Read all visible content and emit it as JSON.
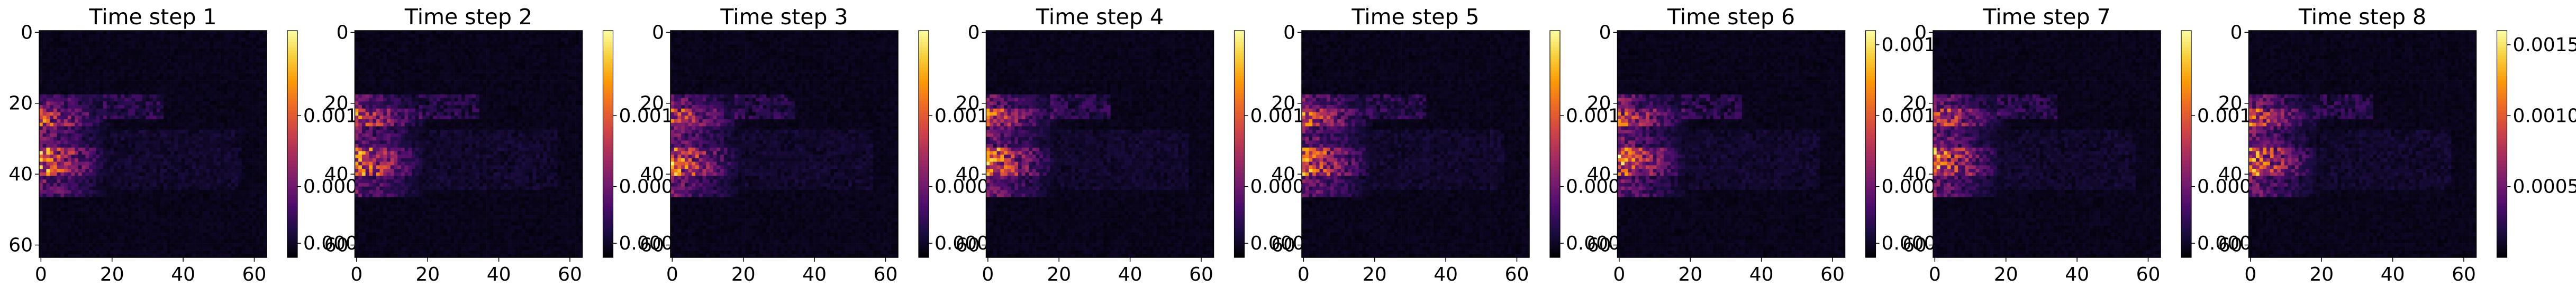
{
  "chart_data": {
    "type": "heatmap",
    "colormap": "magma",
    "panels": [
      {
        "title": "Time step 1",
        "x_ticks": [
          "0",
          "20",
          "40",
          "60"
        ],
        "y_ticks": [
          "0",
          "20",
          "40",
          "60"
        ],
        "colorbar_ticks": [
          "0.001",
          "0.000",
          "0.000"
        ],
        "colorbar_range": [
          0,
          0.0016
        ],
        "grid_size": 64
      },
      {
        "title": "Time step 2",
        "x_ticks": [
          "0",
          "20",
          "40",
          "60"
        ],
        "y_ticks": [
          "0",
          "20",
          "40",
          "60"
        ],
        "colorbar_ticks": [
          "0.001",
          "0.000",
          "0.000"
        ],
        "colorbar_range": [
          0,
          0.0016
        ],
        "grid_size": 64
      },
      {
        "title": "Time step 3",
        "x_ticks": [
          "0",
          "20",
          "40",
          "60"
        ],
        "y_ticks": [
          "0",
          "20",
          "40",
          "60"
        ],
        "colorbar_ticks": [
          "0.001",
          "0.000",
          "0.000"
        ],
        "colorbar_range": [
          0,
          0.0016
        ],
        "grid_size": 64
      },
      {
        "title": "Time step 4",
        "x_ticks": [
          "0",
          "20",
          "40",
          "60"
        ],
        "y_ticks": [
          "0",
          "20",
          "40",
          "60"
        ],
        "colorbar_ticks": [
          "0.001",
          "0.000",
          "0.000"
        ],
        "colorbar_range": [
          0,
          0.0016
        ],
        "grid_size": 64
      },
      {
        "title": "Time step 5",
        "x_ticks": [
          "0",
          "20",
          "40",
          "60"
        ],
        "y_ticks": [
          "0",
          "20",
          "40",
          "60"
        ],
        "colorbar_ticks": [
          "0.001",
          "0.000",
          "0.000"
        ],
        "colorbar_range": [
          0,
          0.0016
        ],
        "grid_size": 64
      },
      {
        "title": "Time step 6",
        "x_ticks": [
          "0",
          "20",
          "40",
          "60"
        ],
        "y_ticks": [
          "0",
          "20",
          "40",
          "60"
        ],
        "colorbar_ticks": [
          "0.0015",
          "0.001",
          "0.000",
          "0.000"
        ],
        "colorbar_range": [
          0,
          0.0016
        ],
        "grid_size": 64
      },
      {
        "title": "Time step 7",
        "x_ticks": [
          "0",
          "20",
          "40",
          "60"
        ],
        "y_ticks": [
          "0",
          "20",
          "40",
          "60"
        ],
        "colorbar_ticks": [
          "0.001",
          "0.000",
          "0.000"
        ],
        "colorbar_range": [
          0,
          0.0016
        ],
        "grid_size": 64
      },
      {
        "title": "Time step 8",
        "x_ticks": [
          "0",
          "20",
          "40",
          "60"
        ],
        "y_ticks": [
          "0",
          "20",
          "40",
          "60"
        ],
        "colorbar_ticks": [
          "0.0015",
          "0.0010",
          "0.0005"
        ],
        "colorbar_range": [
          0,
          0.0016
        ],
        "grid_size": 64
      }
    ]
  }
}
